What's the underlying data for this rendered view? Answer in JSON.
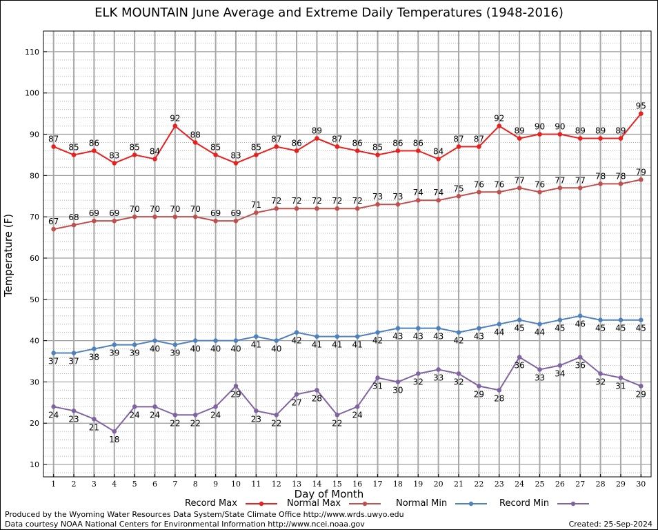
{
  "title": "ELK MOUNTAIN June Average and Extreme Daily Temperatures (1948-2016)",
  "footer": {
    "produced_by": "Produced by the Wyoming Water Resources Data System/State Climate Office http://www.wrds.uwyo.edu",
    "courtesy": "Data courtesy NOAA National Centers for Environmental Information http://www.ncei.noaa.gov",
    "created": "Created:  25-Sep-2024"
  },
  "chart_data": {
    "type": "line",
    "title": "ELK MOUNTAIN June Average and Extreme Daily Temperatures (1948-2016)",
    "xlabel": "Day of Month",
    "ylabel": "Temperature (F)",
    "x": [
      1,
      2,
      3,
      4,
      5,
      6,
      7,
      8,
      9,
      10,
      11,
      12,
      13,
      14,
      15,
      16,
      17,
      18,
      19,
      20,
      21,
      22,
      23,
      24,
      25,
      26,
      27,
      28,
      29,
      30
    ],
    "xlim": [
      0.5,
      30.5
    ],
    "ylim": [
      7,
      115
    ],
    "yticks": [
      10,
      20,
      30,
      40,
      50,
      60,
      70,
      80,
      90,
      100,
      110
    ],
    "grid": true,
    "legend_placement": "bottom",
    "series": [
      {
        "name": "Record Max",
        "color": "#e8211f",
        "values": [
          87,
          85,
          86,
          83,
          85,
          84,
          92,
          88,
          85,
          83,
          85,
          87,
          86,
          89,
          87,
          86,
          85,
          86,
          86,
          84,
          87,
          87,
          92,
          89,
          90,
          90,
          89,
          89,
          89,
          95
        ],
        "label_pos": "above"
      },
      {
        "name": "Normal Max",
        "color": "#c0504d",
        "values": [
          67,
          68,
          69,
          69,
          70,
          70,
          70,
          70,
          69,
          69,
          71,
          72,
          72,
          72,
          72,
          72,
          73,
          73,
          74,
          74,
          75,
          76,
          76,
          77,
          76,
          77,
          77,
          78,
          78,
          79
        ],
        "label_pos": "above"
      },
      {
        "name": "Normal Min",
        "color": "#4f81bd",
        "values": [
          37,
          37,
          38,
          39,
          39,
          40,
          39,
          40,
          40,
          40,
          41,
          40,
          42,
          41,
          41,
          41,
          42,
          43,
          43,
          43,
          42,
          43,
          44,
          45,
          44,
          45,
          46,
          45,
          45,
          45
        ],
        "label_pos": "below"
      },
      {
        "name": "Record Min",
        "color": "#8064a2",
        "values": [
          24,
          23,
          21,
          18,
          24,
          24,
          22,
          22,
          24,
          29,
          23,
          22,
          27,
          28,
          22,
          24,
          31,
          30,
          32,
          33,
          32,
          29,
          28,
          36,
          33,
          34,
          36,
          32,
          31,
          29
        ],
        "label_pos": "below"
      }
    ]
  }
}
